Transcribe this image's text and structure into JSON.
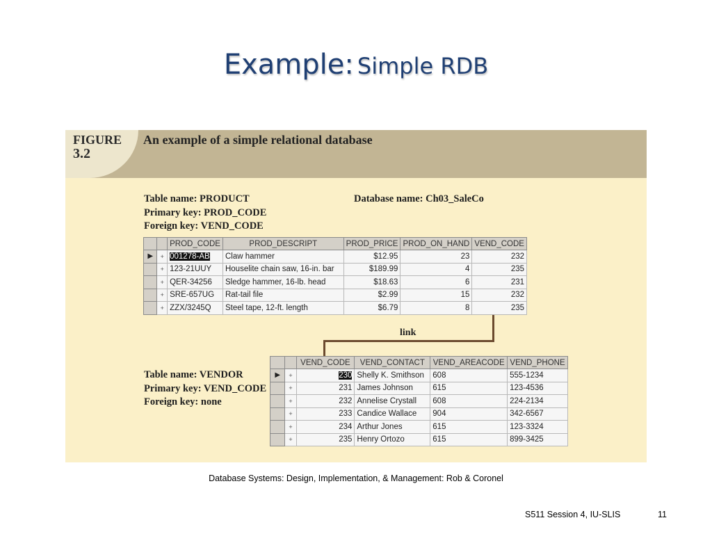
{
  "slide": {
    "title_main": "Example:",
    "title_sub": "Simple RDB",
    "source": "Database Systems: Design, Implementation, & Management: Rob & Coronel",
    "footer_left": "S511 Session 4, IU-SLIS",
    "page_number": "11"
  },
  "figure": {
    "label_line1": "FIGURE",
    "label_line2": "3.2",
    "caption": "An example of a simple relational database",
    "link_label": "link",
    "colors": {
      "header": "#c2b594",
      "body": "#fbf0c8",
      "link": "#6b4a2e",
      "title": "#1f3f73"
    }
  },
  "product": {
    "table_name": "Table name: PRODUCT",
    "primary_key": "Primary key: PROD_CODE",
    "foreign_key": "Foreign key: VEND_CODE",
    "database_name": "Database name: Ch03_SaleCo",
    "columns": [
      "PROD_CODE",
      "PROD_DESCRIPT",
      "PROD_PRICE",
      "PROD_ON_HAND",
      "VEND_CODE"
    ],
    "rows": [
      [
        "001278-AB",
        "Claw hammer",
        "$12.95",
        "23",
        "232"
      ],
      [
        "123-21UUY",
        "Houselite chain saw, 16-in. bar",
        "$189.99",
        "4",
        "235"
      ],
      [
        "QER-34256",
        "Sledge hammer, 16-lb. head",
        "$18.63",
        "6",
        "231"
      ],
      [
        "SRE-657UG",
        "Rat-tail file",
        "$2.99",
        "15",
        "232"
      ],
      [
        "ZZX/3245Q",
        "Steel tape, 12-ft. length",
        "$6.79",
        "8",
        "235"
      ]
    ]
  },
  "vendor": {
    "table_name": "Table name: VENDOR",
    "primary_key": "Primary key: VEND_CODE",
    "foreign_key": "Foreign key: none",
    "columns": [
      "VEND_CODE",
      "VEND_CONTACT",
      "VEND_AREACODE",
      "VEND_PHONE"
    ],
    "rows": [
      [
        "230",
        "Shelly K. Smithson",
        "608",
        "555-1234"
      ],
      [
        "231",
        "James Johnson",
        "615",
        "123-4536"
      ],
      [
        "232",
        "Annelise Crystall",
        "608",
        "224-2134"
      ],
      [
        "233",
        "Candice Wallace",
        "904",
        "342-6567"
      ],
      [
        "234",
        "Arthur Jones",
        "615",
        "123-3324"
      ],
      [
        "235",
        "Henry Ortozo",
        "615",
        "899-3425"
      ]
    ]
  }
}
